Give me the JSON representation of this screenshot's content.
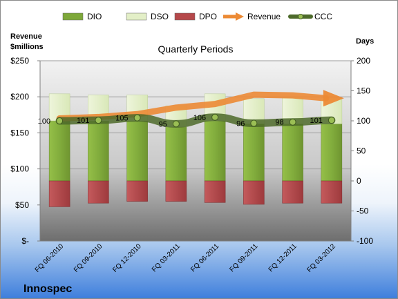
{
  "chart_data": {
    "type": "bar",
    "title": "Quarterly Periods",
    "company": "Innospec",
    "left_axis": {
      "label_line1": "Revenue",
      "label_line2": "$millions",
      "range": [
        0,
        250
      ],
      "ticks": [
        0,
        50,
        100,
        150,
        200,
        250
      ],
      "tick_labels": [
        "$-",
        "$50",
        "$100",
        "$150",
        "$200",
        "$250"
      ]
    },
    "right_axis": {
      "label": "Days",
      "range": [
        -100,
        200
      ],
      "ticks": [
        -100,
        -50,
        0,
        50,
        100,
        150,
        200
      ],
      "tick_labels": [
        "-100",
        "-50",
        "0",
        "50",
        "100",
        "150",
        "200"
      ]
    },
    "categories": [
      "FQ 06-2010",
      "FQ 09-2010",
      "FQ 12-2010",
      "FQ 03-2011",
      "FQ 06-2011",
      "FQ 09-2011",
      "FQ 12-2011",
      "FQ 03-2012"
    ],
    "series": [
      {
        "name": "DIO",
        "axis": "right",
        "kind": "stacked-bar",
        "color": "#7ea83a",
        "values": [
          100,
          100,
          100,
          90,
          100,
          95,
          95,
          95
        ]
      },
      {
        "name": "DSO",
        "axis": "right",
        "kind": "stacked-bar",
        "color": "#e3efc7",
        "values": [
          45,
          43,
          43,
          35,
          45,
          42,
          43,
          43
        ]
      },
      {
        "name": "DPO",
        "axis": "right",
        "kind": "negative-bar",
        "color": "#b5484a",
        "values": [
          -43,
          -37,
          -34,
          -34,
          -36,
          -39,
          -37,
          -37
        ]
      },
      {
        "name": "Revenue",
        "axis": "left",
        "kind": "arrow-line",
        "color": "#ec8a35",
        "values": [
          170,
          172,
          176,
          185,
          190,
          203,
          202,
          198
        ]
      },
      {
        "name": "CCC",
        "axis": "right",
        "kind": "line",
        "color": "#5f7a35",
        "values": [
          100,
          101,
          105,
          95,
          106,
          96,
          98,
          101
        ]
      }
    ],
    "ccc_labels": [
      "100",
      "101",
      "105",
      "95",
      "106",
      "96",
      "98",
      "101"
    ],
    "legend": {
      "placement": "top",
      "entries": [
        {
          "label": "DIO",
          "swatch": "bar",
          "color": "#7ea83a"
        },
        {
          "label": "DSO",
          "swatch": "bar",
          "color": "#e3efc7"
        },
        {
          "label": "DPO",
          "swatch": "bar",
          "color": "#b5484a"
        },
        {
          "label": "Revenue",
          "swatch": "arrow",
          "color": "#ec8a35"
        },
        {
          "label": "CCC",
          "swatch": "line",
          "color": "#5f7a35"
        }
      ]
    },
    "grid": true
  }
}
